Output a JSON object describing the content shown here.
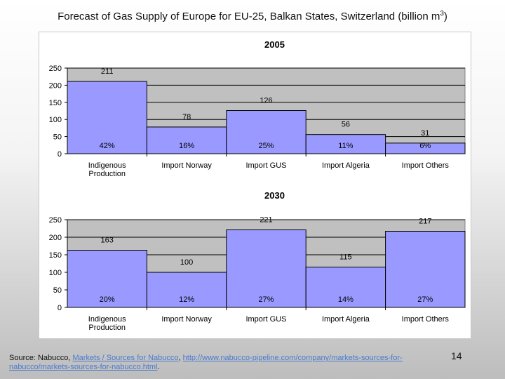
{
  "slide": {
    "title_main": "Forecast of Gas Supply of Europe for EU-25, Balkan States, Switzerland (billion m",
    "title_sup": "3",
    "title_end": ")",
    "page_number": "14"
  },
  "source": {
    "prefix": "Source: Nabucco, ",
    "link1": "Markets / Sources for Nabucco",
    "sep": ", ",
    "link2": "http://www.nabucco-pipeline.com/company/markets-sources-for-nabucco/markets-sources-for-nabucco.html",
    "suffix": "."
  },
  "colors": {
    "bar_fill": "#9999ff",
    "plot_bg": "#c0c0c0",
    "bar_stroke": "#000000"
  },
  "chart_data": [
    {
      "type": "bar",
      "title": "2005",
      "categories": [
        [
          "Indigenous",
          "Production"
        ],
        [
          "Import Norway"
        ],
        [
          "Import GUS"
        ],
        [
          "Import Algeria"
        ],
        [
          "Import Others"
        ]
      ],
      "values": [
        211,
        78,
        126,
        56,
        31
      ],
      "percent_labels": [
        "42%",
        "16%",
        "25%",
        "11%",
        "6%"
      ],
      "ylim": [
        0,
        250
      ],
      "yticks": [
        0,
        50,
        100,
        150,
        200,
        250
      ],
      "grid": true,
      "xlabel": "",
      "ylabel": ""
    },
    {
      "type": "bar",
      "title": "2030",
      "categories": [
        [
          "Indigenous",
          "Production"
        ],
        [
          "Import Norway"
        ],
        [
          "Import GUS"
        ],
        [
          "Import Algeria"
        ],
        [
          "Import Others"
        ]
      ],
      "values": [
        163,
        100,
        221,
        115,
        217
      ],
      "percent_labels": [
        "20%",
        "12%",
        "27%",
        "14%",
        "27%"
      ],
      "ylim": [
        0,
        250
      ],
      "yticks": [
        0,
        50,
        100,
        150,
        200,
        250
      ],
      "grid": true,
      "xlabel": "",
      "ylabel": ""
    }
  ]
}
